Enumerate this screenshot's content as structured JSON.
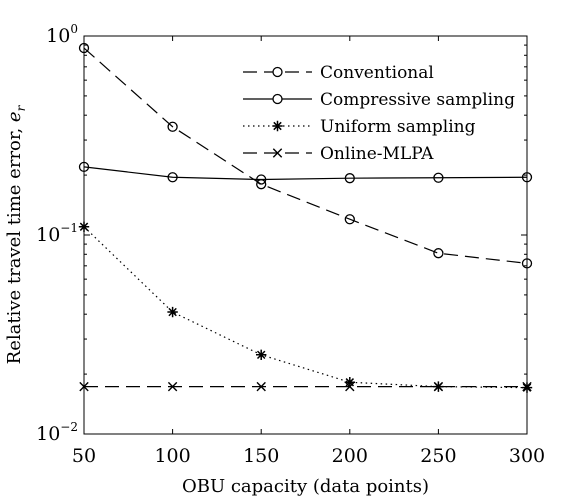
{
  "chart_data": {
    "type": "line",
    "title": "",
    "xlabel": "OBU capacity (data points)",
    "ylabel": "Relative travel time error, ",
    "ylabel_symbol": "e",
    "ylabel_subscript": "r",
    "xlim": [
      50,
      300
    ],
    "ylim": [
      0.01,
      1
    ],
    "yscale": "log",
    "grid": false,
    "legend_position": "top-right",
    "x": [
      50,
      100,
      150,
      200,
      250,
      300
    ],
    "xticks": [
      "50",
      "100",
      "150",
      "200",
      "250",
      "300"
    ],
    "yticks": [
      {
        "value": 1,
        "base": "10",
        "exponent": "0"
      },
      {
        "value": 0.1,
        "base": "10",
        "exponent": "−1"
      },
      {
        "value": 0.01,
        "base": "10",
        "exponent": "−2"
      }
    ],
    "series": [
      {
        "name": "Conventional",
        "values": [
          0.87,
          0.35,
          0.18,
          0.12,
          0.081,
          0.072
        ],
        "line": "dashed",
        "marker": "circle"
      },
      {
        "name": "Compressive sampling",
        "values": [
          0.22,
          0.195,
          0.19,
          0.193,
          0.194,
          0.195
        ],
        "line": "solid",
        "marker": "circle"
      },
      {
        "name": "Uniform sampling",
        "values": [
          0.11,
          0.041,
          0.025,
          0.0182,
          0.0173,
          0.0171
        ],
        "line": "dotted",
        "marker": "asterisk"
      },
      {
        "name": "Online-MLPA",
        "values": [
          0.0173,
          0.0173,
          0.0173,
          0.0173,
          0.0173,
          0.0173
        ],
        "line": "dashed",
        "marker": "cross"
      }
    ]
  }
}
